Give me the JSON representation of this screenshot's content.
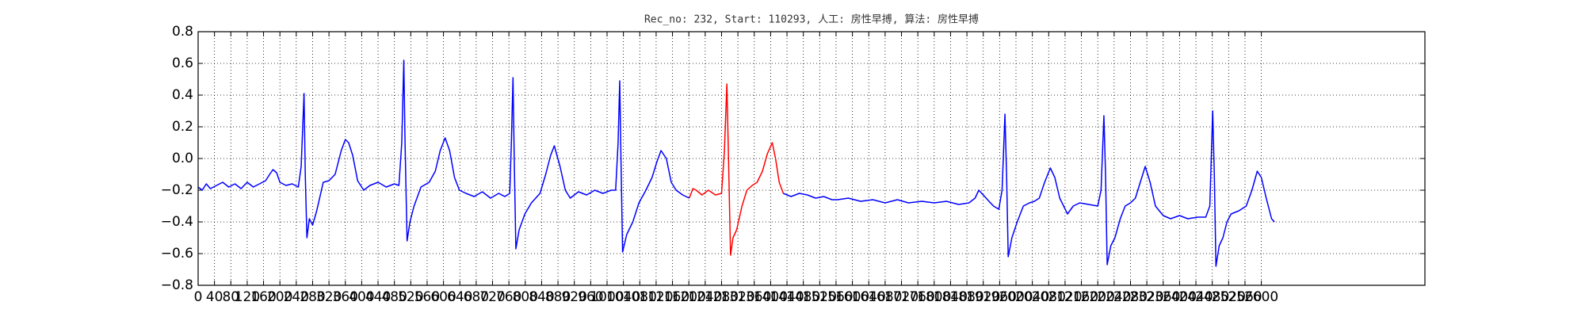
{
  "chart_data": {
    "type": "line",
    "title": "Rec_no: 232, Start: 110293, 人工: 房性早搏, 算法: 房性早搏",
    "xlim": [
      0,
      3000
    ],
    "xticks": [
      0,
      40,
      80,
      120,
      160,
      200,
      240,
      280,
      320,
      360,
      400,
      440,
      480,
      520,
      560,
      600,
      640,
      680,
      720,
      760,
      800,
      840,
      880,
      920,
      960,
      1000,
      1040,
      1080,
      1120,
      1160,
      1200,
      1240,
      1280,
      1320,
      1360,
      1400,
      1440,
      1480,
      1520,
      1560,
      1600,
      1640,
      1680,
      1720,
      1760,
      1800,
      1840,
      1880,
      1920,
      1960,
      2000,
      2040,
      2080,
      2120,
      2160,
      2200,
      2240,
      2280,
      2320,
      2360,
      2400,
      2440,
      2480,
      2520,
      2560,
      2600
    ],
    "ylim": [
      -0.8,
      0.8
    ],
    "yticks": [
      {
        "value": -0.8,
        "label": "−0.8"
      },
      {
        "value": -0.6,
        "label": "−0.6"
      },
      {
        "value": -0.4,
        "label": "−0.4"
      },
      {
        "value": -0.2,
        "label": "−0.2"
      },
      {
        "value": 0,
        "label": "0.0"
      },
      0.2,
      0.4,
      0.6,
      0.8
    ],
    "grid": true,
    "series": [
      {
        "color": "#0000ff",
        "x": [
          0,
          10,
          20,
          30,
          45,
          60,
          75,
          90,
          105,
          120,
          135,
          150,
          165,
          175,
          183,
          192,
          200,
          215,
          230,
          245,
          252,
          259,
          262,
          266,
          272,
          280,
          290,
          306,
          320,
          335,
          350,
          360,
          368,
          378,
          390,
          405,
          420,
          440,
          460,
          480,
          491,
          498,
          503,
          506,
          511,
          518,
          528,
          545,
          565,
          580,
          592,
          604,
          615,
          627,
          639,
          655,
          675,
          695,
          715,
          735,
          750,
          762,
          766,
          770,
          773,
          777,
          785,
          799,
          815,
          836,
          850,
          862,
          871,
          885,
          898,
          910,
          930,
          950,
          970,
          990,
          1010,
          1021,
          1027,
          1031,
          1034,
          1038,
          1048,
          1063,
          1078,
          1095,
          1110,
          1122,
          1132,
          1145,
          1157,
          1169,
          1185,
          1201
        ],
        "values": [
          -0.18,
          -0.2,
          -0.16,
          -0.19,
          -0.17,
          -0.15,
          -0.18,
          -0.16,
          -0.19,
          -0.15,
          -0.18,
          -0.16,
          -0.14,
          -0.1,
          -0.07,
          -0.09,
          -0.15,
          -0.17,
          -0.16,
          -0.18,
          -0.05,
          0.41,
          -0.1,
          -0.5,
          -0.38,
          -0.42,
          -0.33,
          -0.15,
          -0.14,
          -0.1,
          0.05,
          0.12,
          0.1,
          0.02,
          -0.14,
          -0.2,
          -0.17,
          -0.15,
          -0.18,
          -0.16,
          -0.17,
          0.1,
          0.62,
          0.1,
          -0.52,
          -0.4,
          -0.3,
          -0.18,
          -0.15,
          -0.08,
          0.05,
          0.13,
          0.05,
          -0.12,
          -0.2,
          -0.22,
          -0.24,
          -0.21,
          -0.25,
          -0.22,
          -0.24,
          -0.22,
          0.1,
          0.51,
          0.0,
          -0.57,
          -0.45,
          -0.35,
          -0.28,
          -0.22,
          -0.1,
          0.02,
          0.08,
          -0.05,
          -0.2,
          -0.25,
          -0.21,
          -0.23,
          -0.2,
          -0.22,
          -0.2,
          -0.2,
          0.1,
          0.49,
          0.0,
          -0.59,
          -0.48,
          -0.4,
          -0.28,
          -0.2,
          -0.12,
          -0.02,
          0.05,
          0.0,
          -0.15,
          -0.2,
          -0.23,
          -0.25
        ]
      },
      {
        "color": "#ff0000",
        "x": [
          1201,
          1210,
          1218,
          1232,
          1248,
          1265,
          1280,
          1287,
          1293,
          1297,
          1302,
          1308,
          1317,
          1330,
          1342,
          1355,
          1367,
          1380,
          1392,
          1404,
          1412,
          1421,
          1431
        ],
        "values": [
          -0.25,
          -0.19,
          -0.2,
          -0.23,
          -0.2,
          -0.23,
          -0.22,
          0.05,
          0.47,
          0.0,
          -0.61,
          -0.5,
          -0.45,
          -0.3,
          -0.2,
          -0.17,
          -0.15,
          -0.08,
          0.03,
          0.1,
          0.0,
          -0.15,
          -0.22
        ]
      },
      {
        "color": "#0000ff",
        "x": [
          1431,
          1450,
          1470,
          1490,
          1510,
          1530,
          1550,
          1564,
          1590,
          1620,
          1650,
          1680,
          1710,
          1737,
          1770,
          1800,
          1830,
          1860,
          1885,
          1900,
          1909,
          1920,
          1934,
          1945,
          1958,
          1966,
          1973,
          1977,
          1981,
          1990,
          2003,
          2018,
          2033,
          2045,
          2057,
          2070,
          2084,
          2095,
          2107,
          2126,
          2140,
          2156,
          2178,
          2200,
          2208,
          2215,
          2219,
          2223,
          2232,
          2242,
          2255,
          2267,
          2280,
          2292,
          2304,
          2316,
          2328,
          2341,
          2360,
          2378,
          2400,
          2420,
          2445,
          2464,
          2474,
          2481,
          2485,
          2489,
          2497,
          2506,
          2516,
          2526,
          2545,
          2563,
          2577,
          2590,
          2600,
          2612,
          2625,
          2632
        ],
        "values": [
          -0.22,
          -0.24,
          -0.22,
          -0.23,
          -0.25,
          -0.24,
          -0.26,
          -0.26,
          -0.25,
          -0.27,
          -0.26,
          -0.28,
          -0.26,
          -0.28,
          -0.27,
          -0.28,
          -0.27,
          -0.29,
          -0.28,
          -0.25,
          -0.2,
          -0.23,
          -0.27,
          -0.3,
          -0.32,
          -0.2,
          0.28,
          -0.1,
          -0.62,
          -0.5,
          -0.4,
          -0.3,
          -0.28,
          -0.27,
          -0.25,
          -0.15,
          -0.06,
          -0.12,
          -0.25,
          -0.35,
          -0.3,
          -0.28,
          -0.29,
          -0.3,
          -0.2,
          0.27,
          -0.1,
          -0.67,
          -0.55,
          -0.5,
          -0.38,
          -0.3,
          -0.28,
          -0.25,
          -0.15,
          -0.05,
          -0.15,
          -0.3,
          -0.36,
          -0.38,
          -0.36,
          -0.38,
          -0.37,
          -0.37,
          -0.3,
          0.3,
          -0.1,
          -0.68,
          -0.55,
          -0.5,
          -0.4,
          -0.35,
          -0.33,
          -0.3,
          -0.2,
          -0.08,
          -0.12,
          -0.25,
          -0.38,
          -0.4
        ]
      }
    ]
  }
}
